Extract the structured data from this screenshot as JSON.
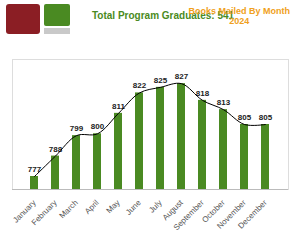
{
  "chart_data": {
    "type": "bar",
    "title": "Books Mailed By Month",
    "subtitle": "2024",
    "annotations": [
      "Total Program Graduates:  541"
    ],
    "categories": [
      "January",
      "February",
      "March",
      "April",
      "May",
      "June",
      "July",
      "August",
      "September",
      "October",
      "November",
      "December"
    ],
    "series": [
      {
        "type": "bar",
        "color": "#4a8a22",
        "values": [
          777,
          788,
          799,
          800,
          811,
          822,
          825,
          827,
          818,
          813,
          805,
          805
        ]
      },
      {
        "type": "line",
        "color": "#000000",
        "values": [
          777,
          788,
          799,
          800,
          811,
          822,
          825,
          827,
          818,
          813,
          805,
          805
        ]
      }
    ],
    "ylim": [
      770,
      840
    ],
    "yticks": [],
    "data_labels": true,
    "tick_labels": "x",
    "grid": false
  }
}
